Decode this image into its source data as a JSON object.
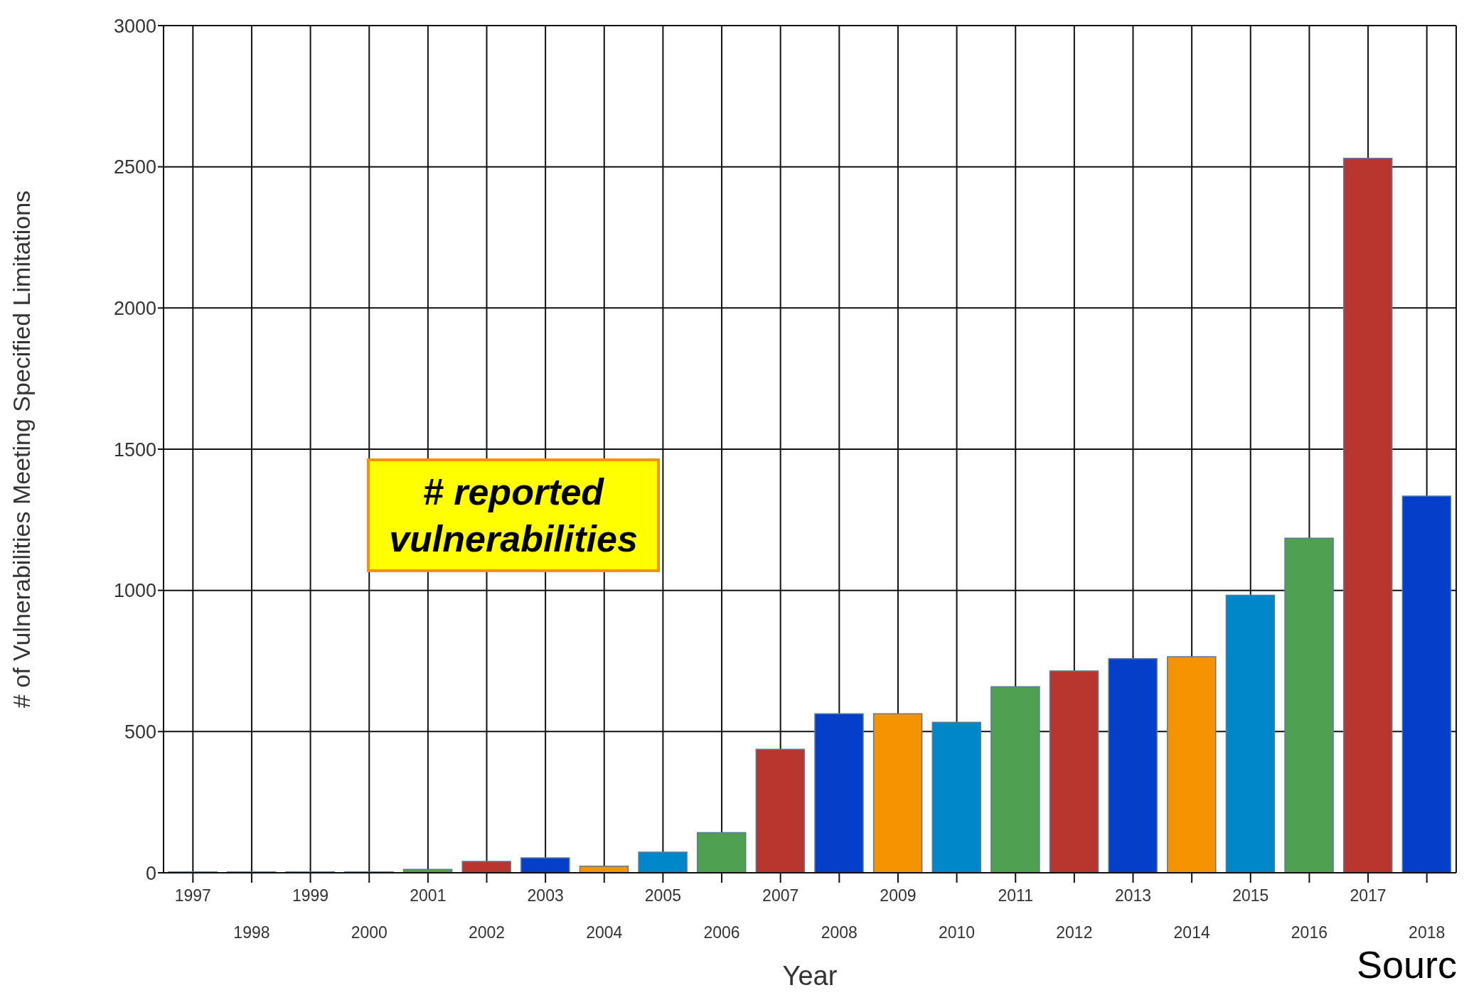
{
  "chart_data": {
    "type": "bar",
    "xlabel": "Year",
    "ylabel": "# of Vulnerabilities Meeting Specified Limitations",
    "categories": [
      "1997",
      "1998",
      "1999",
      "2000",
      "2001",
      "2002",
      "2003",
      "2004",
      "2005",
      "2006",
      "2007",
      "2008",
      "2009",
      "2010",
      "2011",
      "2012",
      "2013",
      "2014",
      "2015",
      "2016",
      "2017",
      "2018"
    ],
    "values": [
      3,
      3,
      3,
      3,
      12,
      40,
      53,
      23,
      73,
      142,
      437,
      563,
      563,
      533,
      659,
      715,
      758,
      765,
      983,
      1185,
      2530,
      1334
    ],
    "colors": [
      "#b8362e",
      "#033fc8",
      "#f59200",
      "#0087ca",
      "#4fa050",
      "#b8362e",
      "#033fc8",
      "#f59200",
      "#0087ca",
      "#4fa050",
      "#b8362e",
      "#033fc8",
      "#f59200",
      "#0087ca",
      "#4fa050",
      "#b8362e",
      "#033fc8",
      "#f59200",
      "#0087ca",
      "#4fa050",
      "#b8362e",
      "#033fc8"
    ],
    "ylim": [
      0,
      3000
    ],
    "yticks": [
      0,
      500,
      1000,
      1500,
      2000,
      2500,
      3000
    ],
    "grid": true,
    "annotations": [
      "# reported vulnerabilities",
      "Sourc"
    ]
  }
}
